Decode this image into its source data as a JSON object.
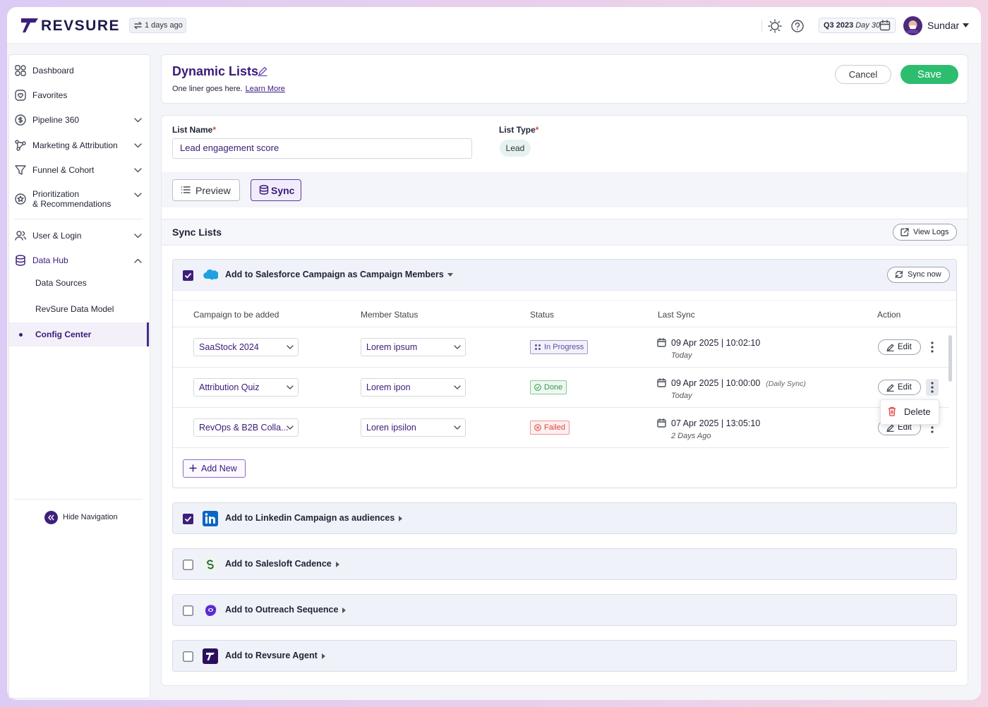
{
  "header": {
    "brand": "REVSURE",
    "last_refresh": "1 days ago",
    "period": "Q3 2023",
    "period_day": "Day 30",
    "user": "Sundar"
  },
  "nav": {
    "items": [
      "Dashboard",
      "Favorites",
      "Pipeline 360",
      "Marketing & Attribution",
      "Funnel & Cohort",
      "Prioritization\n& Recommendations",
      "User & Login",
      "Data Hub"
    ],
    "sub_items": [
      "Data Sources",
      "RevSure Data Model",
      "Config Center"
    ],
    "active_sub_item": 2,
    "hide": "Hide Navigation"
  },
  "page": {
    "title": "Dynamic Lists",
    "subtitle": "One liner goes here.",
    "link": "Learn More",
    "cancel": "Cancel",
    "save": "Save"
  },
  "form": {
    "list_name_label": "List Name",
    "required_mark": "*",
    "list_name": "Lead engagement score",
    "list_type_label": "List Type",
    "list_type": "Lead"
  },
  "tabs": {
    "items": [
      "Preview",
      "Sync"
    ],
    "active": 1
  },
  "sync": {
    "title": "Sync Lists",
    "view_logs": "View Logs",
    "sync_now": "Sync now",
    "columns": [
      "Campaign to be added",
      "Member Status",
      "Status",
      "Last Sync",
      "Action"
    ],
    "rows": [
      {
        "campaign": "SaaStock 2024",
        "member_status": "Lorem ipsum",
        "status": "In Progress",
        "status_color": "#5d4ca8",
        "last_sync": "09 Apr 2025 | 10:02:10",
        "relative": "Today",
        "action": "Edit"
      },
      {
        "campaign": "Attribution Quiz",
        "member_status": "Lorem ipon",
        "status": "Done",
        "status_color": "#2e9e4f",
        "last_sync": "09 Apr 2025 | 10:00:00",
        "note": "(Daily Sync)",
        "relative": "Today",
        "action": "Edit"
      },
      {
        "campaign": "RevOps & B2B Colla...",
        "member_status": "Loren ipsilon",
        "status": "Failed",
        "status_color": "#e0443e",
        "last_sync": "07 Apr 2025 | 13:05:10",
        "relative": "2 Days Ago",
        "action": "Edit"
      }
    ],
    "add_new": "Add New",
    "menu": [
      "Delete"
    ],
    "menu_row": 1
  },
  "destinations": [
    {
      "label": "Add to Salesforce Campaign as Campaign Members",
      "checked": true,
      "expanded": true
    },
    {
      "label": "Add to Linkedin Campaign as audiences",
      "checked": true,
      "expanded": false
    },
    {
      "label": "Add to Salesloft Cadence",
      "checked": false,
      "expanded": false
    },
    {
      "label": "Add to Outreach Sequence",
      "checked": false,
      "expanded": false
    },
    {
      "label": "Add to Revsure Agent",
      "checked": false,
      "expanded": false
    }
  ]
}
